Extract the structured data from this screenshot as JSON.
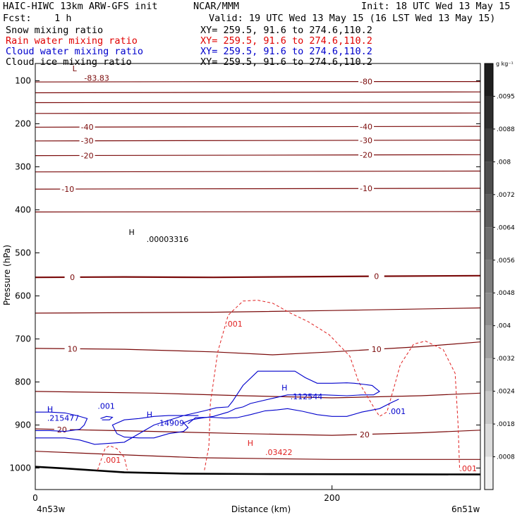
{
  "header": {
    "title": "HAIC-HIWC 13km ARW-GFS init",
    "org": "NCAR/MMM",
    "init": "Init: 18 UTC Wed 13 May 15",
    "fcst": "Fcst:    1 h",
    "valid": "Valid: 19 UTC Wed 13 May 15 (16 LST Wed 13 May 15)",
    "fields": [
      {
        "label": "Snow mixing ratio",
        "xy": "XY= 259.5, 91.6 to 274.6,110.2",
        "color": "#000000"
      },
      {
        "label": "Rain water mixing ratio",
        "xy": "XY= 259.5, 91.6 to 274.6,110.2",
        "color": "#e00000"
      },
      {
        "label": "Cloud water mixing ratio",
        "xy": "XY= 259.5, 91.6 to 274.6,110.2",
        "color": "#0000cc"
      },
      {
        "label": "Cloud ice mixing ratio",
        "xy": "XY= 259.5, 91.6 to 274.6,110.2",
        "color": "#000000"
      }
    ]
  },
  "chart_data": {
    "type": "contour",
    "xlabel": "Distance (km)",
    "ylabel": "Pressure (hPa)",
    "xlim": [
      0,
      300
    ],
    "ylim": [
      1050,
      60
    ],
    "xticks": [
      0,
      200
    ],
    "yticks": [
      100,
      200,
      300,
      400,
      500,
      600,
      700,
      800,
      900,
      1000
    ],
    "x_left_label": "4n53w",
    "x_right_label": "6n51w",
    "colors": {
      "temperature": "#7a0a0a",
      "rain": "#e02020",
      "cloud_water": "#0000cc",
      "terrain": "#000000"
    },
    "temperature_contours": [
      {
        "label": "-80",
        "points": [
          [
            0,
            103
          ],
          [
            150,
            102
          ],
          [
            300,
            102
          ]
        ],
        "label_x": [
          223
        ]
      },
      {
        "label": "",
        "points": [
          [
            0,
            128
          ],
          [
            300,
            126
          ]
        ],
        "label_x": []
      },
      {
        "label": "",
        "points": [
          [
            0,
            151
          ],
          [
            300,
            150
          ]
        ],
        "label_x": []
      },
      {
        "label": "",
        "points": [
          [
            0,
            176
          ],
          [
            300,
            175
          ]
        ],
        "label_x": []
      },
      {
        "label": "-40",
        "points": [
          [
            0,
            208
          ],
          [
            300,
            206
          ]
        ],
        "label_x": [
          35,
          223
        ]
      },
      {
        "label": "-30",
        "points": [
          [
            0,
            240
          ],
          [
            300,
            238
          ]
        ],
        "label_x": [
          35,
          223
        ]
      },
      {
        "label": "-20",
        "points": [
          [
            0,
            274
          ],
          [
            300,
            272
          ]
        ],
        "label_x": [
          35,
          223
        ]
      },
      {
        "label": "",
        "points": [
          [
            0,
            312
          ],
          [
            300,
            310
          ]
        ],
        "label_x": []
      },
      {
        "label": "-10",
        "points": [
          [
            0,
            352
          ],
          [
            300,
            350
          ]
        ],
        "label_x": [
          22,
          223
        ]
      },
      {
        "label": "",
        "points": [
          [
            0,
            405
          ],
          [
            300,
            404
          ]
        ],
        "label_x": []
      },
      {
        "label": "0",
        "points": [
          [
            0,
            557
          ],
          [
            60,
            556
          ],
          [
            120,
            557
          ],
          [
            200,
            555
          ],
          [
            300,
            553
          ]
        ],
        "label_x": [
          25,
          230
        ]
      },
      {
        "label": "",
        "points": [
          [
            0,
            640
          ],
          [
            120,
            638
          ],
          [
            200,
            634
          ],
          [
            300,
            628
          ]
        ],
        "label_x": []
      },
      {
        "label": "10",
        "points": [
          [
            0,
            722
          ],
          [
            60,
            724
          ],
          [
            120,
            730
          ],
          [
            160,
            737
          ],
          [
            200,
            730
          ],
          [
            260,
            718
          ],
          [
            300,
            707
          ]
        ],
        "label_x": [
          25,
          230
        ]
      },
      {
        "label": "",
        "points": [
          [
            0,
            822
          ],
          [
            80,
            826
          ],
          [
            140,
            832
          ],
          [
            200,
            837
          ],
          [
            260,
            832
          ],
          [
            300,
            826
          ]
        ],
        "label_x": []
      },
      {
        "label": "20",
        "points": [
          [
            0,
            909
          ],
          [
            80,
            915
          ],
          [
            140,
            920
          ],
          [
            200,
            924
          ],
          [
            260,
            918
          ],
          [
            300,
            912
          ]
        ],
        "label_x": [
          18,
          222
        ]
      },
      {
        "label": "",
        "points": [
          [
            0,
            961
          ],
          [
            50,
            968
          ],
          [
            110,
            976
          ],
          [
            200,
            980
          ],
          [
            300,
            980
          ]
        ],
        "label_x": []
      }
    ],
    "terrain": [
      [
        0,
        997
      ],
      [
        20,
        1001
      ],
      [
        60,
        1010
      ],
      [
        100,
        1013
      ],
      [
        150,
        1014
      ],
      [
        300,
        1015
      ]
    ],
    "rain_contours": [
      [
        [
          114,
          1005
        ],
        [
          117,
          950
        ],
        [
          118,
          850
        ],
        [
          123,
          730
        ],
        [
          130,
          645
        ],
        [
          140,
          612
        ],
        [
          150,
          610
        ],
        [
          160,
          617
        ],
        [
          172,
          640
        ],
        [
          184,
          660
        ],
        [
          198,
          690
        ],
        [
          212,
          740
        ],
        [
          218,
          800
        ],
        [
          228,
          858
        ],
        [
          232,
          880
        ],
        [
          237,
          870
        ],
        [
          242,
          810
        ],
        [
          246,
          760
        ],
        [
          255,
          712
        ],
        [
          263,
          705
        ],
        [
          275,
          725
        ],
        [
          283,
          780
        ],
        [
          285,
          900
        ],
        [
          286,
          1005
        ]
      ],
      [
        [
          42,
          1005
        ],
        [
          44,
          985
        ],
        [
          47,
          955
        ],
        [
          50,
          948
        ],
        [
          55,
          955
        ],
        [
          60,
          975
        ],
        [
          62,
          1005
        ]
      ]
    ],
    "cloud_water_contours": [
      [
        [
          0,
          930
        ],
        [
          20,
          930
        ],
        [
          30,
          935
        ],
        [
          40,
          945
        ],
        [
          60,
          940
        ],
        [
          80,
          900
        ],
        [
          100,
          878
        ],
        [
          114,
          867
        ],
        [
          122,
          860
        ],
        [
          130,
          858
        ],
        [
          133,
          845
        ],
        [
          140,
          808
        ],
        [
          150,
          775
        ],
        [
          165,
          775
        ],
        [
          175,
          775
        ],
        [
          182,
          790
        ],
        [
          190,
          803
        ],
        [
          200,
          803
        ],
        [
          210,
          802
        ],
        [
          215,
          803
        ],
        [
          220,
          805
        ],
        [
          227,
          808
        ],
        [
          232,
          822
        ],
        [
          228,
          830
        ],
        [
          220,
          830
        ],
        [
          210,
          832
        ],
        [
          195,
          830
        ],
        [
          180,
          830
        ],
        [
          170,
          830
        ],
        [
          160,
          838
        ],
        [
          145,
          850
        ],
        [
          140,
          858
        ],
        [
          135,
          862
        ],
        [
          130,
          870
        ],
        [
          120,
          880
        ],
        [
          110,
          885
        ],
        [
          105,
          888
        ],
        [
          100,
          895
        ],
        [
          103,
          906
        ],
        [
          100,
          915
        ],
        [
          90,
          920
        ],
        [
          80,
          930
        ],
        [
          70,
          930
        ],
        [
          60,
          928
        ],
        [
          55,
          920
        ],
        [
          52,
          900
        ],
        [
          60,
          888
        ],
        [
          70,
          885
        ],
        [
          80,
          880
        ],
        [
          90,
          878
        ],
        [
          100,
          878
        ],
        [
          110,
          878
        ]
      ],
      [
        [
          0,
          870
        ],
        [
          10,
          870
        ],
        [
          20,
          872
        ],
        [
          28,
          878
        ],
        [
          35,
          885
        ],
        [
          33,
          900
        ],
        [
          30,
          910
        ],
        [
          20,
          915
        ],
        [
          10,
          913
        ],
        [
          0,
          913
        ]
      ],
      [
        [
          103,
          897
        ],
        [
          108,
          883
        ],
        [
          118,
          882
        ],
        [
          128,
          884
        ],
        [
          136,
          883
        ],
        [
          145,
          876
        ],
        [
          155,
          867
        ],
        [
          163,
          865
        ],
        [
          170,
          862
        ],
        [
          180,
          868
        ],
        [
          190,
          876
        ],
        [
          200,
          880
        ],
        [
          210,
          880
        ],
        [
          220,
          870
        ],
        [
          232,
          862
        ],
        [
          240,
          848
        ],
        [
          245,
          840
        ]
      ],
      [
        [
          44,
          885
        ],
        [
          48,
          880
        ],
        [
          52,
          882
        ],
        [
          50,
          888
        ],
        [
          45,
          888
        ]
      ]
    ],
    "annotations": [
      {
        "text": "L",
        "x": 25,
        "p": 78,
        "color": "temperature"
      },
      {
        "text": "-83.83",
        "x": 33,
        "p": 100,
        "color": "temperature"
      },
      {
        "text": "H",
        "x": 63,
        "p": 458,
        "color": "black"
      },
      {
        "text": ".00003316",
        "x": 75,
        "p": 475,
        "color": "black"
      },
      {
        "text": ".001",
        "x": 128,
        "p": 671,
        "color": "rain"
      },
      {
        "text": "H",
        "x": 166,
        "p": 820,
        "color": "cloud_water"
      },
      {
        "text": ".112544",
        "x": 172,
        "p": 840,
        "color": "cloud_water"
      },
      {
        "text": ".001",
        "x": 238,
        "p": 875,
        "color": "cloud_water"
      },
      {
        "text": "H",
        "x": 8,
        "p": 870,
        "color": "cloud_water"
      },
      {
        "text": ".215477",
        "x": 8,
        "p": 890,
        "color": "cloud_water"
      },
      {
        "text": ".001",
        "x": 42,
        "p": 862,
        "color": "cloud_water"
      },
      {
        "text": "H",
        "x": 75,
        "p": 882,
        "color": "cloud_water"
      },
      {
        "text": ".14909",
        "x": 82,
        "p": 902,
        "color": "cloud_water"
      },
      {
        "text": "H",
        "x": 143,
        "p": 948,
        "color": "rain"
      },
      {
        "text": ".03422",
        "x": 155,
        "p": 970,
        "color": "rain"
      },
      {
        "text": ".001",
        "x": 46,
        "p": 988,
        "color": "rain"
      },
      {
        "text": ".001",
        "x": 286,
        "p": 1007,
        "color": "rain"
      }
    ],
    "colorbar": {
      "unit": "g kg⁻¹",
      "labels": [
        ".0095",
        ".0088",
        ".008",
        ".0072",
        ".0064",
        ".0056",
        ".0048",
        ".004",
        ".0032",
        ".0024",
        ".0018",
        ".0008"
      ],
      "colors": [
        "#1e1e1e",
        "#2e2e2e",
        "#3e3e3e",
        "#4e4e4e",
        "#5e5e5e",
        "#6e6e6e",
        "#7e7e7e",
        "#8e8e8e",
        "#a0a0a0",
        "#b4b4b4",
        "#c8c8c8",
        "#dcdcdc",
        "#f0f0f0"
      ]
    }
  }
}
